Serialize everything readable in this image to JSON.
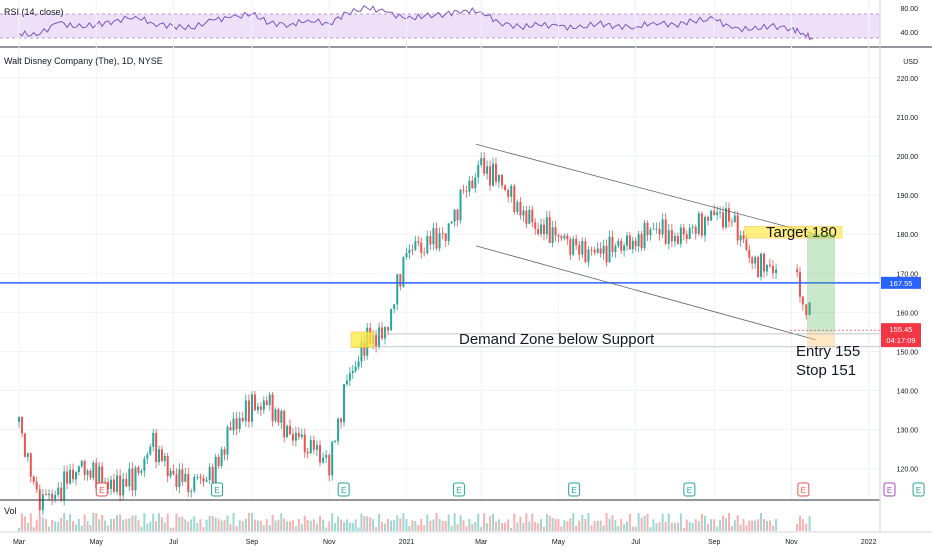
{
  "header": {
    "rsi_label": "RSI (14, close)",
    "symbol_title": "Walt Disney Company (The), 1D, NYSE",
    "currency": "USD",
    "volume_label": "Vol"
  },
  "chart_data": [
    {
      "type": "line",
      "panel": "rsi",
      "title": "RSI (14, close)",
      "ylim": [
        20,
        90
      ],
      "yticks": [
        "80.00",
        "40.00"
      ],
      "band": [
        30,
        70
      ],
      "grid": false,
      "x": [
        "2020-03-01",
        "2020-03-15",
        "2020-04-01",
        "2020-04-15",
        "2020-05-01",
        "2020-05-15",
        "2020-06-01",
        "2020-06-15",
        "2020-07-01",
        "2020-07-15",
        "2020-08-01",
        "2020-08-15",
        "2020-09-01",
        "2020-09-15",
        "2020-10-01",
        "2020-10-15",
        "2020-11-01",
        "2020-11-15",
        "2020-12-01",
        "2020-12-15",
        "2021-01-01",
        "2021-01-15",
        "2021-02-01",
        "2021-02-15",
        "2021-03-01",
        "2021-03-15",
        "2021-04-01",
        "2021-04-15",
        "2021-05-01",
        "2021-05-15",
        "2021-06-01",
        "2021-06-15",
        "2021-07-01",
        "2021-07-15",
        "2021-08-01",
        "2021-08-15",
        "2021-09-01",
        "2021-09-15",
        "2021-10-01",
        "2021-10-15",
        "2021-11-01",
        "2021-11-10",
        "2021-11-18"
      ],
      "values": [
        38,
        34,
        56,
        48,
        52,
        58,
        66,
        54,
        50,
        46,
        60,
        64,
        70,
        55,
        52,
        60,
        54,
        72,
        80,
        74,
        62,
        66,
        70,
        76,
        74,
        56,
        48,
        52,
        50,
        46,
        54,
        50,
        48,
        56,
        52,
        58,
        62,
        46,
        44,
        50,
        46,
        38,
        28
      ]
    },
    {
      "type": "candlestick",
      "panel": "price",
      "title": "Walt Disney Company (The), 1D, NYSE",
      "ylabel": "USD",
      "ylim": [
        112,
        222
      ],
      "yticks": [
        120,
        130,
        140,
        150,
        160,
        170,
        180,
        190,
        200,
        210,
        220
      ],
      "ytick_labels": [
        "120.00",
        "130.00",
        "140.00",
        "150.00",
        "160.00",
        "170.00",
        "180.00",
        "190.00",
        "200.00",
        "210.00",
        "220.00"
      ],
      "xtick_labels": [
        "Mar",
        "May",
        "Jul",
        "Sep",
        "Nov",
        "2021",
        "Mar",
        "May",
        "Jul",
        "Sep",
        "Nov",
        "2022"
      ],
      "xtick_dates": [
        "2020-03-01",
        "2020-05-01",
        "2020-07-01",
        "2020-09-01",
        "2020-11-01",
        "2021-01-01",
        "2021-03-01",
        "2021-05-01",
        "2021-07-01",
        "2021-09-01",
        "2021-11-01",
        "2022-01-01"
      ],
      "x": [
        "2020-03-01",
        "2020-03-15",
        "2020-04-01",
        "2020-04-15",
        "2020-05-01",
        "2020-05-15",
        "2020-06-01",
        "2020-06-15",
        "2020-07-01",
        "2020-07-15",
        "2020-08-01",
        "2020-08-15",
        "2020-09-01",
        "2020-09-15",
        "2020-10-01",
        "2020-10-15",
        "2020-11-01",
        "2020-11-15",
        "2020-12-01",
        "2020-12-15",
        "2021-01-01",
        "2021-01-15",
        "2021-02-01",
        "2021-02-15",
        "2021-03-01",
        "2021-03-15",
        "2021-04-01",
        "2021-04-15",
        "2021-05-01",
        "2021-05-15",
        "2021-06-01",
        "2021-06-15",
        "2021-07-01",
        "2021-07-15",
        "2021-08-01",
        "2021-08-15",
        "2021-09-01",
        "2021-09-15",
        "2021-10-01",
        "2021-10-15",
        "2021-11-01",
        "2021-11-10",
        "2021-11-18"
      ],
      "series": [
        {
          "values": [
            132,
            112,
            114,
            121,
            118,
            115,
            118,
            126,
            118,
            117,
            118,
            130,
            136,
            136,
            129,
            127,
            121,
            142,
            153,
            154,
            176,
            178,
            180,
            190,
            197,
            194,
            186,
            182,
            180,
            176,
            175,
            177,
            178,
            182,
            179,
            181,
            185,
            184,
            173,
            171,
            173,
            162,
            158
          ]
        }
      ],
      "horizontal_lines": [
        {
          "value": 167.55,
          "label": "167.55",
          "color": "#2962ff"
        }
      ],
      "last_price": {
        "label": "155.45",
        "countdown": "04:17:09",
        "color": "#f23645"
      },
      "annotations": [
        {
          "text": "Target 180",
          "zone": [
            179,
            182
          ]
        },
        {
          "text": "Demand Zone below Support",
          "zone": [
            151,
            154
          ]
        },
        {
          "text": "Entry 155"
        },
        {
          "text": "Stop 151"
        }
      ],
      "trendlines": [
        {
          "from": [
            "2021-02-25",
            203
          ],
          "to": [
            "2021-11-20",
            180
          ]
        },
        {
          "from": [
            "2021-02-25",
            177
          ],
          "to": [
            "2021-11-20",
            153
          ]
        }
      ],
      "event_markers": [
        "E",
        "E",
        "E",
        "E",
        "E",
        "E",
        "E",
        "E",
        "E"
      ],
      "colors": {
        "up": "#26a69a",
        "down": "#ef5350",
        "zone": "#ffeb3b",
        "target": "#4caf50"
      }
    },
    {
      "type": "bar",
      "panel": "volume",
      "title": "Vol",
      "grid": false
    }
  ]
}
